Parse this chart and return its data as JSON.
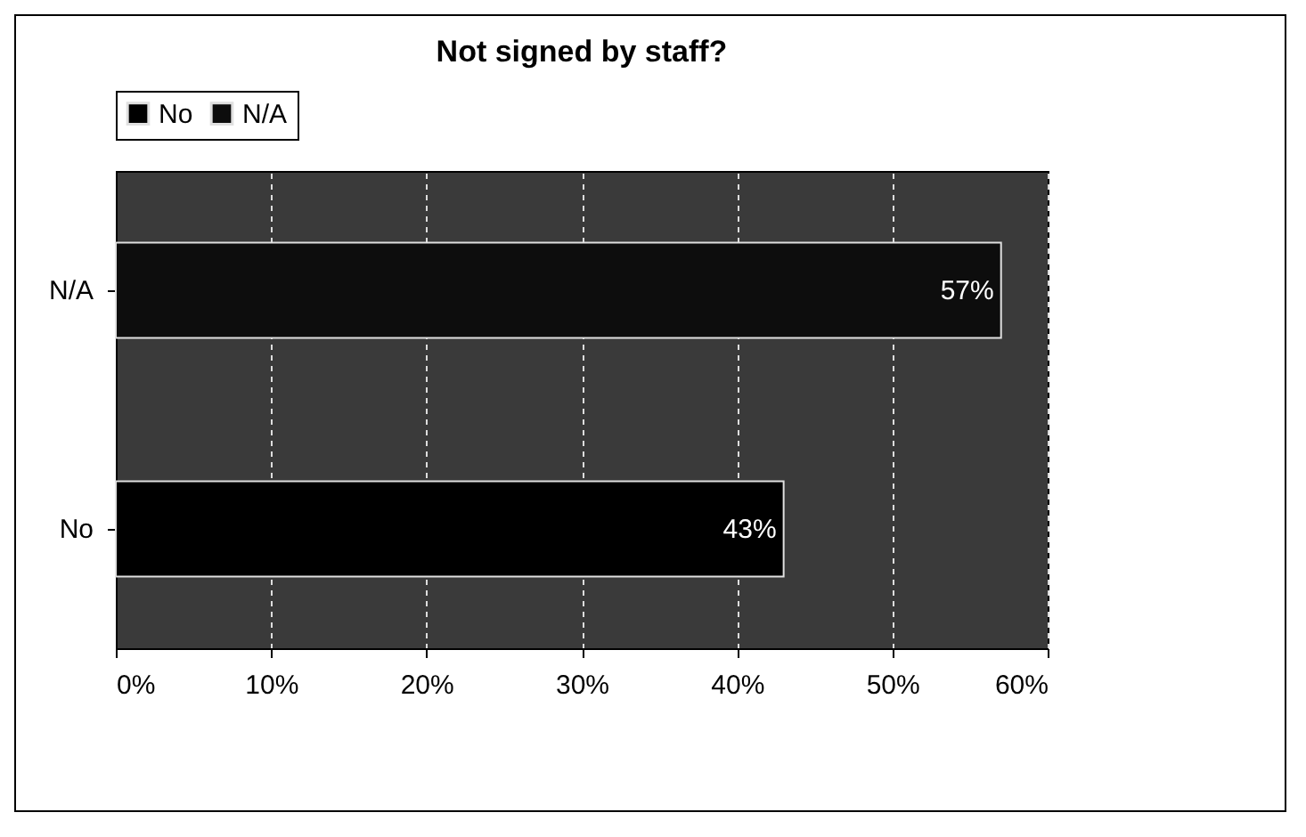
{
  "chart_data": {
    "type": "bar",
    "orientation": "horizontal",
    "title": "Not signed by staff?",
    "categories": [
      "N/A",
      "No"
    ],
    "series": [
      {
        "name": "No",
        "color": "#000000",
        "values": [
          null,
          43
        ],
        "value_labels": [
          null,
          "43%"
        ]
      },
      {
        "name": "N/A",
        "color": "#0d0d0d",
        "values": [
          57,
          null
        ],
        "value_labels": [
          "57%",
          null
        ]
      }
    ],
    "xlim": [
      0,
      60
    ],
    "xticks": [
      {
        "value": 0,
        "label": "0%"
      },
      {
        "value": 10,
        "label": "10%"
      },
      {
        "value": 20,
        "label": "20%"
      },
      {
        "value": 30,
        "label": "30%"
      },
      {
        "value": 40,
        "label": "40%"
      },
      {
        "value": 50,
        "label": "50%"
      },
      {
        "value": 60,
        "label": "60%"
      }
    ],
    "grid": "x",
    "legend": "top"
  }
}
